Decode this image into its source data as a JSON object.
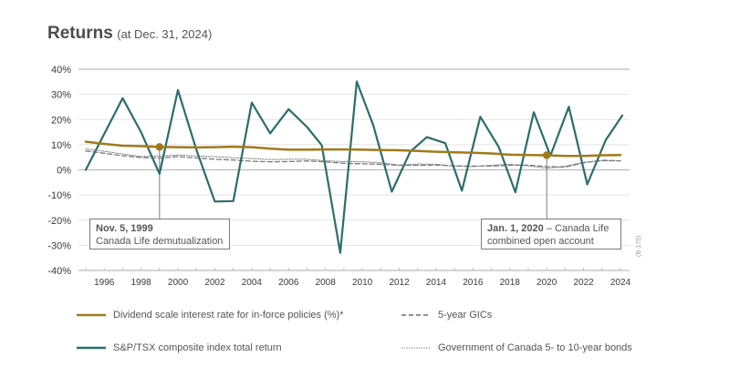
{
  "header": {
    "title": "Returns",
    "subtitle": "(at Dec. 31, 2024)"
  },
  "side_code": "(B-175)",
  "colors": {
    "dividend": "#a07a1a",
    "tsx": "#2b6e6a",
    "gic": "#7a7a7a",
    "bonds": "#7a7a7a",
    "grid": "#e3e3e3",
    "zero": "#bdbdbd"
  },
  "chart_data": {
    "type": "line",
    "title": "Returns (at Dec. 31, 2024)",
    "xlabel": "",
    "ylabel": "",
    "ylim": [
      -40,
      40
    ],
    "xlim": [
      1995,
      2024
    ],
    "grid": true,
    "y_ticks": [
      "40%",
      "30%",
      "20%",
      "10%",
      "0%",
      "-10%",
      "-20%",
      "-30%",
      "-40%"
    ],
    "y_tick_values": [
      40,
      30,
      20,
      10,
      0,
      -10,
      -20,
      -30,
      -40
    ],
    "x_ticks": [
      "1996",
      "1998",
      "2000",
      "2002",
      "2004",
      "2006",
      "2008",
      "2010",
      "2012",
      "2014",
      "2016",
      "2018",
      "2020",
      "2022",
      "2024"
    ],
    "x_tick_values": [
      1996,
      1998,
      2000,
      2002,
      2004,
      2006,
      2008,
      2010,
      2012,
      2014,
      2016,
      2018,
      2020,
      2022,
      2024
    ],
    "minor_ticks_every_year": true,
    "series": [
      {
        "name": "Dividend scale interest rate for in-force policies (%)*",
        "key": "dividend",
        "style": "solid",
        "x": [
          1995,
          1996,
          1997,
          1998,
          1999,
          2000,
          2001,
          2002,
          2003,
          2004,
          2005,
          2006,
          2007,
          2008,
          2009,
          2010,
          2011,
          2012,
          2013,
          2014,
          2015,
          2016,
          2017,
          2018,
          2019,
          2020,
          2021,
          2022,
          2023,
          2024
        ],
        "values": [
          11.2,
          10.3,
          9.6,
          9.4,
          9.1,
          9.0,
          8.9,
          9.0,
          9.2,
          9.0,
          8.4,
          8.0,
          8.0,
          8.1,
          8.1,
          8.0,
          7.9,
          7.8,
          7.5,
          7.2,
          7.0,
          6.8,
          6.5,
          6.0,
          5.9,
          5.8,
          5.5,
          5.5,
          5.8,
          5.9
        ]
      },
      {
        "name": "S&P/TSX composite index total return",
        "key": "tsx",
        "style": "solid",
        "x": [
          1995,
          1997,
          1998,
          1999,
          2000,
          2001,
          2002,
          2003,
          2004,
          2005,
          2006,
          2007,
          2007.8,
          2008.8,
          2009.7,
          2010.6,
          2011.6,
          2012.6,
          2013.5,
          2014.5,
          2015.4,
          2016.4,
          2017.4,
          2018.3,
          2019.3,
          2020.2,
          2021.2,
          2022.2,
          2023.2,
          2024.1
        ],
        "values": [
          0.0,
          28.5,
          15.0,
          -1.6,
          31.7,
          8.0,
          -12.6,
          -12.4,
          26.7,
          14.5,
          24.1,
          17.0,
          9.8,
          -33.0,
          35.1,
          17.6,
          -8.7,
          7.2,
          13.0,
          10.6,
          -8.3,
          21.1,
          9.1,
          -8.9,
          22.9,
          5.6,
          25.1,
          -5.8,
          11.8,
          21.6
        ]
      },
      {
        "name": "5-year GICs",
        "key": "gic",
        "style": "dashed",
        "x": [
          1995,
          1996,
          1997,
          1998,
          1999,
          2000,
          2001,
          2002,
          2003,
          2004,
          2005,
          2006,
          2007,
          2008,
          2009,
          2010,
          2011,
          2012,
          2013,
          2014,
          2015,
          2016,
          2017,
          2018,
          2019,
          2020,
          2021,
          2022,
          2023,
          2024
        ],
        "values": [
          7.5,
          6.6,
          5.6,
          4.9,
          4.7,
          5.3,
          4.7,
          4.2,
          3.9,
          3.4,
          3.2,
          3.3,
          3.5,
          3.2,
          2.6,
          2.4,
          2.2,
          1.8,
          1.8,
          1.9,
          1.6,
          1.5,
          1.5,
          1.8,
          1.9,
          1.3,
          1.1,
          2.8,
          3.8,
          3.6
        ]
      },
      {
        "name": "Government of Canada 5- to 10-year bonds",
        "key": "bonds",
        "style": "dotted",
        "x": [
          1995,
          1996,
          1997,
          1998,
          1999,
          2000,
          2001,
          2002,
          2003,
          2004,
          2005,
          2006,
          2007,
          2008,
          2009,
          2010,
          2011,
          2012,
          2013,
          2014,
          2015,
          2016,
          2017,
          2018,
          2019,
          2020,
          2021,
          2022,
          2023,
          2024
        ],
        "values": [
          8.3,
          7.4,
          6.3,
          5.3,
          5.5,
          5.9,
          5.5,
          5.2,
          4.8,
          4.5,
          4.1,
          4.2,
          4.2,
          3.6,
          3.3,
          3.2,
          2.8,
          1.9,
          2.3,
          2.2,
          1.5,
          1.3,
          1.8,
          2.2,
          1.6,
          0.7,
          1.4,
          3.0,
          3.6,
          3.5
        ]
      }
    ],
    "annotations": [
      {
        "date_label": "Nov. 5, 1999",
        "text": "Canada Life demutualization",
        "x": 1999,
        "y": 9.1,
        "series": "dividend"
      },
      {
        "date_label": "Jan. 1, 2020",
        "text": "– Canada Life combined open account",
        "text_line1": "– Canada Life",
        "text_line2": "combined open account",
        "x": 2020,
        "y": 5.8,
        "series": "dividend"
      }
    ],
    "legend": {
      "placement": "bottom",
      "items": [
        {
          "label": "Dividend scale interest rate for in-force policies (%)*",
          "key": "dividend",
          "style": "solid"
        },
        {
          "label": "5-year GICs",
          "key": "gic",
          "style": "dashed"
        },
        {
          "label": "S&P/TSX composite index total return",
          "key": "tsx",
          "style": "solid"
        },
        {
          "label": "Government of Canada 5- to 10-year bonds",
          "key": "bonds",
          "style": "dotted"
        }
      ]
    }
  }
}
